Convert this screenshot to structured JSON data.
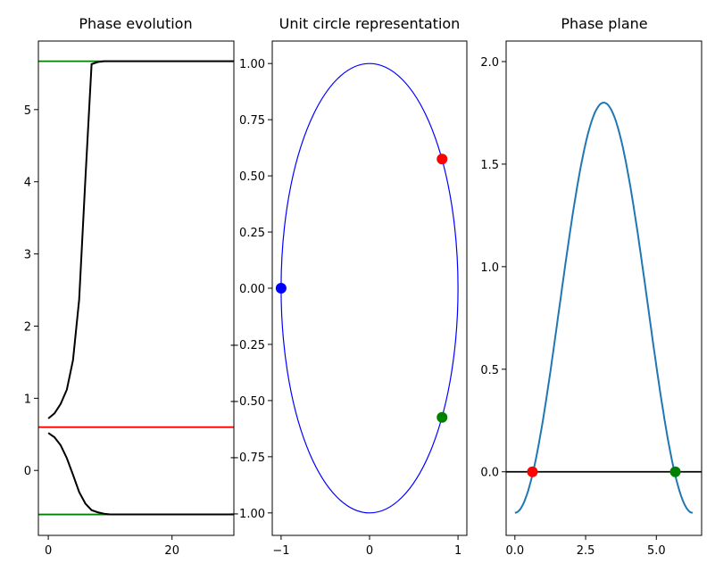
{
  "chart_data": [
    {
      "type": "line",
      "title": "Phase evolution",
      "xlim": [
        -1.6,
        30
      ],
      "ylim": [
        -0.9,
        5.95
      ],
      "xticks": [
        0,
        20
      ],
      "yticks": [
        0,
        1,
        2,
        3,
        4,
        5
      ],
      "series": [
        {
          "color": "#000000",
          "x": [
            0,
            1,
            2,
            3,
            4,
            5,
            6,
            7,
            8,
            9,
            10,
            11,
            12,
            14,
            16,
            20,
            25,
            30
          ],
          "y": [
            0.72,
            0.79,
            0.92,
            1.12,
            1.53,
            2.37,
            4.05,
            5.63,
            5.66,
            5.67,
            5.67,
            5.67,
            5.67,
            5.67,
            5.67,
            5.67,
            5.67,
            5.67
          ]
        },
        {
          "color": "#000000",
          "x": [
            0,
            1,
            2,
            3,
            4,
            5,
            6,
            7,
            8,
            9,
            10,
            11,
            12,
            14,
            16,
            20,
            25,
            30
          ],
          "y": [
            0.52,
            0.46,
            0.35,
            0.17,
            -0.06,
            -0.3,
            -0.46,
            -0.55,
            -0.58,
            -0.6,
            -0.61,
            -0.61,
            -0.61,
            -0.61,
            -0.61,
            -0.61,
            -0.61,
            -0.61
          ]
        }
      ],
      "hlines": [
        {
          "y": 5.67,
          "color": "#008000"
        },
        {
          "y": 0.6,
          "color": "#ff0000"
        },
        {
          "y": -0.61,
          "color": "#008000"
        }
      ]
    },
    {
      "type": "scatter",
      "title": "Unit circle representation",
      "xlim": [
        -1.1,
        1.1
      ],
      "ylim": [
        -1.1,
        1.1
      ],
      "xticks": [
        -1,
        0,
        1
      ],
      "yticks": [
        1.0,
        0.75,
        0.5,
        0.25,
        0.0,
        -0.25,
        -0.5,
        -0.75,
        -1.0
      ],
      "curve": {
        "shape": "unit circle",
        "color": "#0000ff"
      },
      "points": [
        {
          "x": 0.82,
          "y": 0.575,
          "color": "#ff0000"
        },
        {
          "x": -1.0,
          "y": 0.0,
          "color": "#0000ff"
        },
        {
          "x": 0.82,
          "y": -0.575,
          "color": "#008000"
        }
      ]
    },
    {
      "type": "line",
      "title": "Phase plane",
      "xlim": [
        -0.31,
        6.6
      ],
      "ylim": [
        -0.31,
        2.1
      ],
      "xticks": [
        0.0,
        2.5,
        5.0
      ],
      "yticks": [
        0.0,
        0.5,
        1.0,
        1.5,
        2.0
      ],
      "curve": {
        "formula": "1 - cos(x) - 0.2",
        "x_range": [
          0,
          6.283
        ],
        "color": "#1f77b4"
      },
      "hlines": [
        {
          "y": 0.0,
          "color": "#000000"
        }
      ],
      "points": [
        {
          "x": 0.62,
          "y": 0.0,
          "color": "#ff0000"
        },
        {
          "x": 5.67,
          "y": 0.0,
          "color": "#008000"
        }
      ]
    }
  ]
}
